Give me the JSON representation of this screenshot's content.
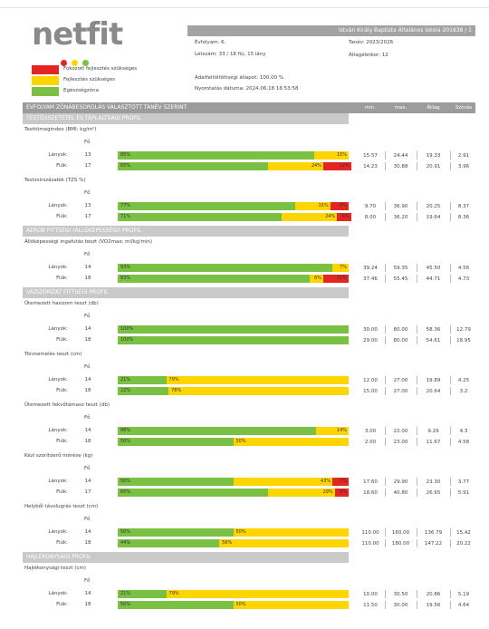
{
  "header": {
    "logo": "netfit",
    "school": "István Király Baptista Általános Iskola 201838 / 1",
    "info": [
      "Évfolyam: 6.",
      "Tanév: 2023/2026",
      "Létszám: 33 / 18 fiú, 15 lány",
      "Átlagéletkor: 12",
      "Adatfeltöltöttségi állapot: 100,00 %",
      "Nyomtatás dátuma: 2024.06.18 16:53:58"
    ]
  },
  "legend": [
    {
      "label": "Fokozott fejlesztés szükséges",
      "color": "#e52521"
    },
    {
      "label": "Fejlesztés szükséges",
      "color": "#ffd500"
    },
    {
      "label": "Egészségzóna",
      "color": "#7ac143"
    }
  ],
  "bar_colors": [
    "#7ac143",
    "#ffd500",
    "#e52521"
  ],
  "table_header": {
    "title": "ÉVFOLYAM ZÓNÁBESOROLÁS VÁLASZTOTT TANÉV SZERINT",
    "columns": [
      "min.",
      "max.",
      "Átlag",
      "Szórás"
    ]
  },
  "count_header": "Fő",
  "sections": [
    {
      "title": "TESTÖSSZETÉTEL ÉS TÁPLÁLTSÁGI PROFIL",
      "tests": [
        {
          "title": "Testtömegindex (BMI; kg/m²)",
          "rows": [
            {
              "group": "Lányok:",
              "count": 13,
              "values": [
                85,
                15
              ],
              "value_labels": [
                "85%",
                "15%"
              ],
              "stats": [
                "15.57",
                "24.44",
                "19.33",
                "2.91"
              ]
            },
            {
              "group": "Fiúk:",
              "count": 17,
              "values": [
                65,
                24,
                12
              ],
              "value_labels": [
                "65%",
                "24%",
                "12%"
              ],
              "stats": [
                "14.23",
                "30.88",
                "20.91",
                "3.96"
              ]
            }
          ]
        },
        {
          "title": "Testzsírszázalék (TZS %)",
          "rows": [
            {
              "group": "Lányok:",
              "count": 13,
              "values": [
                77,
                15,
                8
              ],
              "value_labels": [
                "77%",
                "15%",
                "8%"
              ],
              "stats": [
                "9.70",
                "36.90",
                "20.25",
                "8.37"
              ]
            },
            {
              "group": "Fiúk:",
              "count": 17,
              "values": [
                71,
                24,
                6
              ],
              "value_labels": [
                "71%",
                "24%",
                "6%"
              ],
              "stats": [
                "8.00",
                "36.20",
                "19.64",
                "8.36"
              ]
            }
          ]
        }
      ]
    },
    {
      "title": "AEROB FITTSÉGI (ÁLLÓKÉPESSÉGI) PROFIL",
      "tests": [
        {
          "title": "Állóképességi ingafutás teszt (VO2max; ml/kg/min)",
          "rows": [
            {
              "group": "Lányok:",
              "count": 14,
              "values": [
                93,
                7
              ],
              "value_labels": [
                "93%",
                "7%"
              ],
              "stats": [
                "39.24",
                "59.35",
                "45.50",
                "4.56"
              ]
            },
            {
              "group": "Fiúk:",
              "count": 18,
              "values": [
                83,
                6,
                11
              ],
              "value_labels": [
                "83%",
                "6%",
                "11%"
              ],
              "stats": [
                "37.46",
                "55.45",
                "44.71",
                "4.73"
              ]
            }
          ]
        }
      ]
    },
    {
      "title": "VÁZIZOMZAT FITTSÉGI PROFIL",
      "tests": [
        {
          "title": "Ütemezett hasizom teszt (db)",
          "rows": [
            {
              "group": "Lányok:",
              "count": 14,
              "values": [
                100
              ],
              "value_labels": [
                "100%"
              ],
              "stats": [
                "30.00",
                "80.00",
                "58.36",
                "12.79"
              ]
            },
            {
              "group": "Fiúk:",
              "count": 18,
              "values": [
                100
              ],
              "value_labels": [
                "100%"
              ],
              "stats": [
                "29.00",
                "80.00",
                "54.61",
                "18.95"
              ]
            }
          ]
        },
        {
          "title": "Törzsemelés teszt (cm)",
          "rows": [
            {
              "group": "Lányok:",
              "count": 14,
              "values": [
                21,
                79
              ],
              "value_labels": [
                "21%",
                "79%"
              ],
              "stats": [
                "12.00",
                "27.00",
                "19.89",
                "4.25"
              ]
            },
            {
              "group": "Fiúk:",
              "count": 18,
              "values": [
                22,
                78
              ],
              "value_labels": [
                "22%",
                "78%"
              ],
              "stats": [
                "15.00",
                "27.00",
                "20.64",
                "3.2"
              ]
            }
          ]
        },
        {
          "title": "Ütemezett fekvőtámasz teszt (db)",
          "rows": [
            {
              "group": "Lányok:",
              "count": 14,
              "values": [
                86,
                14
              ],
              "value_labels": [
                "86%",
                "14%"
              ],
              "stats": [
                "3.00",
                "22.00",
                "9.29",
                "4.3"
              ]
            },
            {
              "group": "Fiúk:",
              "count": 18,
              "values": [
                50,
                50
              ],
              "value_labels": [
                "50%",
                "50%"
              ],
              "stats": [
                "2.00",
                "23.00",
                "11.67",
                "4.58"
              ]
            }
          ]
        },
        {
          "title": "Kézi szorítóerő mérése (kg)",
          "rows": [
            {
              "group": "Lányok:",
              "count": 14,
              "values": [
                50,
                43,
                7
              ],
              "value_labels": [
                "50%",
                "43%",
                "7%"
              ],
              "stats": [
                "17.60",
                "29.90",
                "23.30",
                "3.77"
              ]
            },
            {
              "group": "Fiúk:",
              "count": 17,
              "values": [
                65,
                29,
                6
              ],
              "value_labels": [
                "65%",
                "29%",
                "6%"
              ],
              "stats": [
                "18.60",
                "40.80",
                "26.65",
                "5.91"
              ]
            }
          ]
        },
        {
          "title": "Helyből távolugrás teszt (cm)",
          "rows": [
            {
              "group": "Lányok:",
              "count": 14,
              "values": [
                50,
                50
              ],
              "value_labels": [
                "50%",
                "50%"
              ],
              "stats": [
                "110.00",
                "160.00",
                "136.79",
                "15.42"
              ]
            },
            {
              "group": "Fiúk:",
              "count": 18,
              "values": [
                44,
                56
              ],
              "value_labels": [
                "44%",
                "56%"
              ],
              "stats": [
                "110.00",
                "180.00",
                "147.22",
                "20.22"
              ]
            }
          ]
        }
      ]
    },
    {
      "title": "HAJLÉKONYSÁGI PROFIL",
      "tests": [
        {
          "title": "Hajlékonysági teszt (cm)",
          "rows": [
            {
              "group": "Lányok:",
              "count": 14,
              "values": [
                21,
                79
              ],
              "value_labels": [
                "21%",
                "79%"
              ],
              "stats": [
                "10.00",
                "30.50",
                "20.86",
                "5.19"
              ]
            },
            {
              "group": "Fiúk:",
              "count": 18,
              "values": [
                50,
                50
              ],
              "value_labels": [
                "50%",
                "50%"
              ],
              "stats": [
                "11.50",
                "30.00",
                "19.56",
                "4.64"
              ]
            }
          ]
        }
      ]
    }
  ]
}
